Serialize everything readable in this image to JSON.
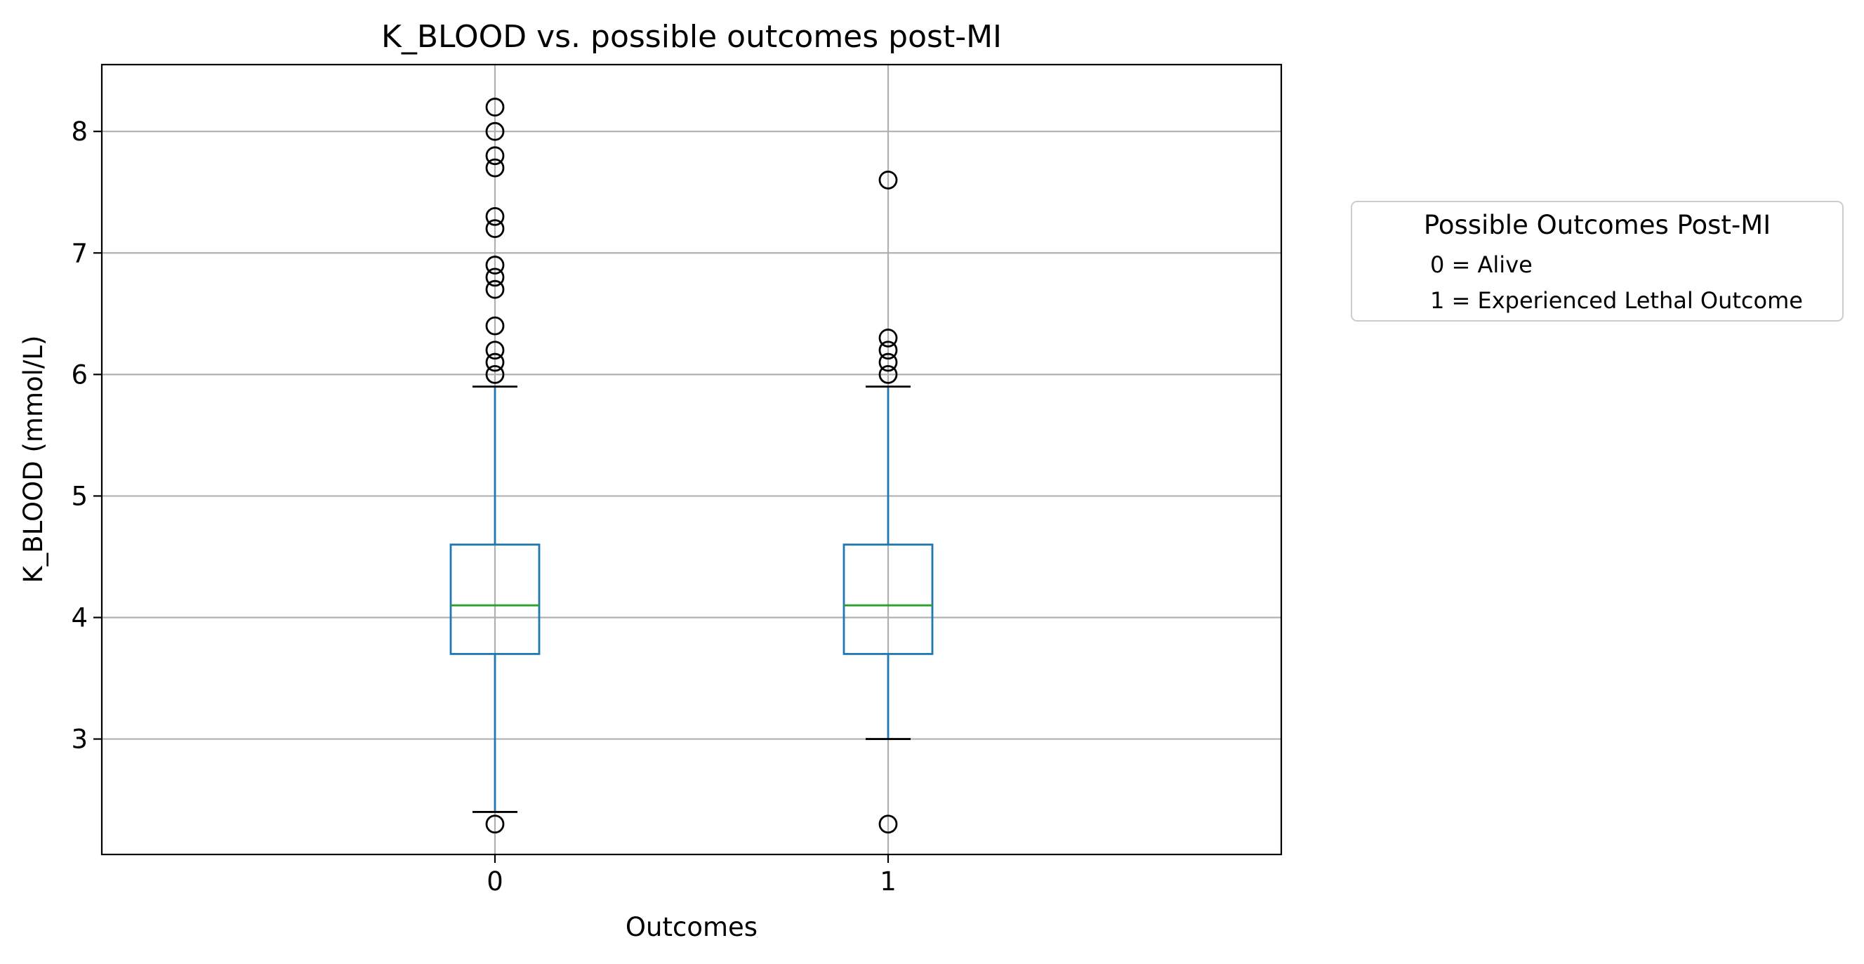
{
  "chart_data": {
    "type": "box",
    "title": "K_BLOOD vs. possible outcomes post-MI",
    "xlabel": "Outcomes",
    "ylabel": "K_BLOOD (mmol/L)",
    "categories": [
      "0",
      "1"
    ],
    "yticks": [
      "3",
      "4",
      "5",
      "6",
      "7",
      "8"
    ],
    "ylim": [
      2.05,
      8.55
    ],
    "grid": true,
    "boxes": [
      {
        "category": "0",
        "whisker_low": 2.4,
        "q1": 3.7,
        "median": 4.1,
        "q3": 4.6,
        "whisker_high": 5.9,
        "outliers": [
          2.3,
          6.0,
          6.1,
          6.2,
          6.4,
          6.7,
          6.8,
          6.9,
          7.2,
          7.3,
          7.7,
          7.8,
          8.0,
          8.2
        ]
      },
      {
        "category": "1",
        "whisker_low": 3.0,
        "q1": 3.7,
        "median": 4.1,
        "q3": 4.6,
        "whisker_high": 5.9,
        "outliers": [
          2.3,
          6.0,
          6.1,
          6.2,
          6.3,
          7.6
        ]
      }
    ],
    "legend": {
      "title": "Possible Outcomes Post-MI",
      "placement": "outside-right",
      "items": [
        "0 = Alive",
        "1 = Experienced Lethal Outcome"
      ]
    },
    "colors": {
      "box": "#1f77b4",
      "median": "#2ca02c",
      "caps": "#000000",
      "outliers": "#000000",
      "grid": "#b0b0b0"
    }
  }
}
